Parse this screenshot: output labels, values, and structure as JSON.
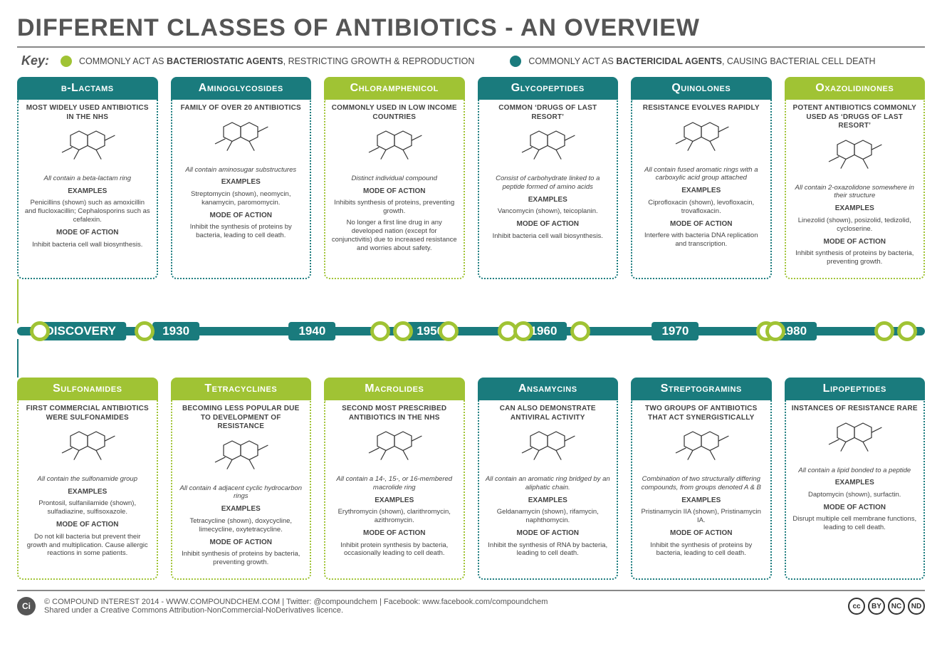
{
  "colors": {
    "teal": "#1a7b7d",
    "green": "#a0c334",
    "title_text": "#555555",
    "body_text": "#444444",
    "rule": "#888888"
  },
  "title": "DIFFERENT CLASSES OF ANTIBIOTICS - AN OVERVIEW",
  "key": {
    "label": "Key:",
    "bacteriostatic": {
      "color": "#a0c334",
      "text_prefix": "COMMONLY ACT AS ",
      "text_bold": "BACTERIOSTATIC AGENTS",
      "text_suffix": ", RESTRICTING GROWTH & REPRODUCTION"
    },
    "bactericidal": {
      "color": "#1a7b7d",
      "text_prefix": "COMMONLY ACT AS ",
      "text_bold": "BACTERICIDAL AGENTS",
      "text_suffix": ", CAUSING BACTERIAL CELL DEATH"
    }
  },
  "timeline": {
    "bar_color": "#1a7b7d",
    "start_label": "DISCOVERY",
    "decades": [
      {
        "label": "1930",
        "x_pct": 17.5
      },
      {
        "label": "1940",
        "x_pct": 32.5
      },
      {
        "label": "1950",
        "x_pct": 45.5
      },
      {
        "label": "1960",
        "x_pct": 58.0
      },
      {
        "label": "1970",
        "x_pct": 72.5
      },
      {
        "label": "1980",
        "x_pct": 85.5
      }
    ],
    "nodes": [
      {
        "x_pct": 2.5,
        "ring": "#a0c334"
      },
      {
        "x_pct": 14.0,
        "ring": "#a0c334"
      },
      {
        "x_pct": 40.0,
        "ring": "#a0c334"
      },
      {
        "x_pct": 42.5,
        "ring": "#a0c334"
      },
      {
        "x_pct": 47.5,
        "ring": "#a0c334"
      },
      {
        "x_pct": 54.0,
        "ring": "#a0c334"
      },
      {
        "x_pct": 55.8,
        "ring": "#a0c334"
      },
      {
        "x_pct": 62.0,
        "ring": "#a0c334"
      },
      {
        "x_pct": 82.5,
        "ring": "#a0c334"
      },
      {
        "x_pct": 83.5,
        "ring": "#a0c334"
      },
      {
        "x_pct": 95.5,
        "ring": "#a0c334"
      },
      {
        "x_pct": 98.0,
        "ring": "#a0c334"
      }
    ]
  },
  "top_cards": [
    {
      "name": "β-Lactams",
      "type": "teal",
      "tagline": "MOST WIDELY USED ANTIBIOTICS IN THE NHS",
      "desc": "All contain a beta-lactam ring",
      "examples": "Penicillins (shown) such as amoxicillin and flucloxacillin; Cephalosporins such as cefalexin.",
      "mode": "Inhibit bacteria cell wall biosynthesis."
    },
    {
      "name": "Aminoglycosides",
      "type": "teal",
      "tagline": "FAMILY OF OVER 20 ANTIBIOTICS",
      "desc": "All contain aminosugar substructures",
      "examples": "Streptomycin (shown), neomycin, kanamycin, paromomycin.",
      "mode": "Inhibit the synthesis of proteins by bacteria, leading to cell death."
    },
    {
      "name": "Chloramphenicol",
      "type": "green",
      "tagline": "COMMONLY USED IN LOW INCOME COUNTRIES",
      "desc": "Distinct individual compound",
      "examples": "",
      "mode": "Inhibits synthesis of proteins, preventing growth.",
      "extra": "No longer a first line drug in any developed nation (except for conjunctivitis) due to increased resistance and worries about safety."
    },
    {
      "name": "Glycopeptides",
      "type": "teal",
      "tagline": "COMMON ‘DRUGS OF LAST RESORT’",
      "desc": "Consist of carbohydrate linked to a peptide formed of amino acids",
      "examples": "Vancomycin (shown), teicoplanin.",
      "mode": "Inhibit bacteria cell wall biosynthesis."
    },
    {
      "name": "Quinolones",
      "type": "teal",
      "tagline": "RESISTANCE EVOLVES RAPIDLY",
      "desc": "All contain fused aromatic rings with a carboxylic acid group attached",
      "examples": "Ciprofloxacin (shown), levofloxacin, trovafloxacin.",
      "mode": "Interfere with bacteria DNA replication and transcription."
    },
    {
      "name": "Oxazolidinones",
      "type": "green",
      "tagline": "POTENT ANTIBIOTICS COMMONLY USED AS ‘DRUGS OF LAST RESORT’",
      "desc": "All contain 2-oxazolidone somewhere in their structure",
      "examples": "Linezolid (shown), posizolid, tedizolid, cycloserine.",
      "mode": "Inhibit synthesis of proteins by bacteria, preventing growth."
    }
  ],
  "bottom_cards": [
    {
      "name": "Sulfonamides",
      "type": "green",
      "tagline": "FIRST COMMERCIAL ANTIBIOTICS WERE SULFONAMIDES",
      "desc": "All contain the sulfonamide group",
      "examples": "Prontosil, sulfanilamide (shown), sulfadiazine, sulfisoxazole.",
      "mode": "Do not kill bacteria but prevent their growth and multiplication. Cause allergic reactions in some patients."
    },
    {
      "name": "Tetracyclines",
      "type": "green",
      "tagline": "BECOMING LESS POPULAR DUE TO DEVELOPMENT OF RESISTANCE",
      "desc": "All contain 4 adjacent cyclic hydrocarbon rings",
      "examples": "Tetracycline (shown), doxycycline, limecycline, oxytetracycline.",
      "mode": "Inhibit synthesis of proteins by bacteria, preventing growth."
    },
    {
      "name": "Macrolides",
      "type": "green",
      "tagline": "SECOND MOST PRESCRIBED ANTIBIOTICS IN THE NHS",
      "desc": "All contain a 14-, 15-, or 16-membered macrolide ring",
      "examples": "Erythromycin (shown), clarithromycin, azithromycin.",
      "mode": "Inhibit protein synthesis by bacteria, occasionally leading to cell death."
    },
    {
      "name": "Ansamycins",
      "type": "teal",
      "tagline": "CAN ALSO DEMONSTRATE ANTIVIRAL ACTIVITY",
      "desc": "All contain an aromatic ring bridged by an aliphatic chain.",
      "examples": "Geldanamycin (shown), rifamycin, naphthomycin.",
      "mode": "Inhibit the synthesis of RNA by bacteria, leading to cell death."
    },
    {
      "name": "Streptogramins",
      "type": "teal",
      "tagline": "TWO GROUPS OF ANTIBIOTICS THAT ACT SYNERGISTICALLY",
      "desc": "Combination of two structurally differing compounds, from groups denoted A & B",
      "examples": "Pristinamycin IIA (shown), Pristinamycin IA.",
      "mode": "Inhibit the synthesis of proteins by bacteria, leading to cell death."
    },
    {
      "name": "Lipopeptides",
      "type": "teal",
      "tagline": "INSTANCES OF RESISTANCE RARE",
      "desc": "All contain a lipid bonded to a peptide",
      "examples": "Daptomycin (shown), surfactin.",
      "mode": "Disrupt multiple cell membrane functions, leading to cell death."
    }
  ],
  "labels": {
    "examples": "EXAMPLES",
    "mode": "MODE OF ACTION"
  },
  "footer": {
    "line1": "© COMPOUND INTEREST 2014 - WWW.COMPOUNDCHEM.COM | Twitter: @compoundchem | Facebook: www.facebook.com/compoundchem",
    "line2": "Shared under a Creative Commons Attribution-NonCommercial-NoDerivatives licence.",
    "cc": [
      "cc",
      "BY",
      "NC",
      "ND"
    ]
  }
}
